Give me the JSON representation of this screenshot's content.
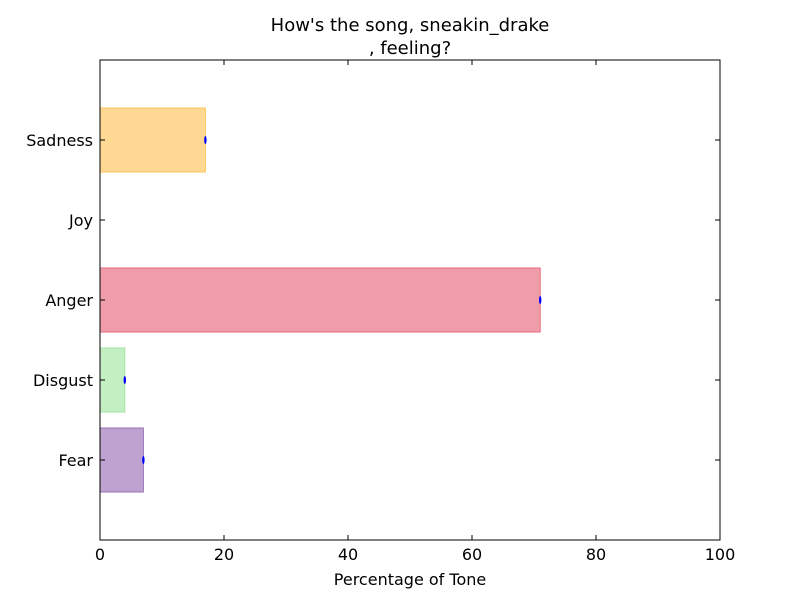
{
  "chart_data": {
    "type": "bar",
    "orientation": "horizontal",
    "title_line1": "How's the song, sneakin_drake",
    "title_line2": ", feeling?",
    "xlabel": "Percentage of Tone",
    "ylabel": "",
    "xlim": [
      0,
      100
    ],
    "xticks": [
      "0",
      "20",
      "40",
      "60",
      "80",
      "100"
    ],
    "categories": [
      "Fear",
      "Disgust",
      "Anger",
      "Joy",
      "Sadness"
    ],
    "values": [
      7,
      4,
      71,
      0,
      17
    ],
    "colors": [
      "#9b72b8",
      "#a3e6a3",
      "#e8697c",
      "#cccccc",
      "#ffc55a"
    ],
    "error_marker_color": "#0000ff",
    "grid": false,
    "legend": "none"
  }
}
